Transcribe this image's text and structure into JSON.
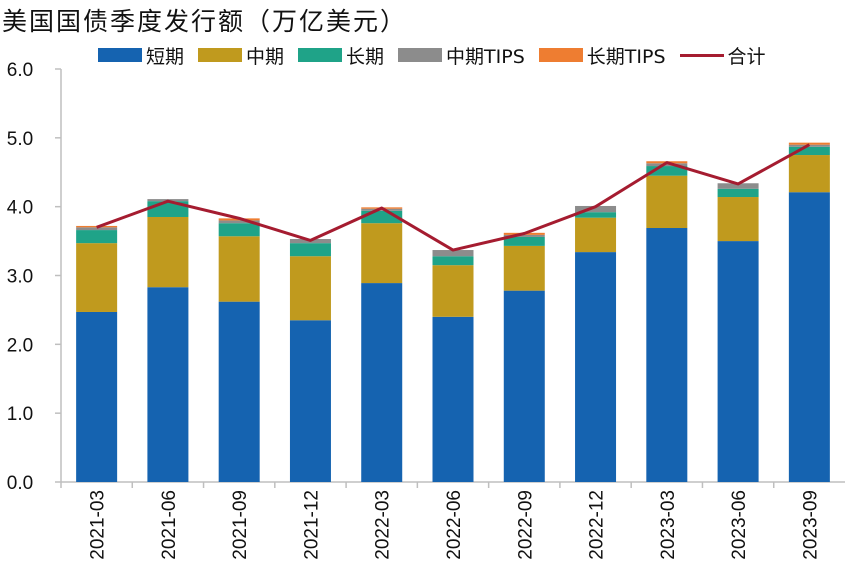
{
  "chart_data": {
    "type": "bar",
    "stacked": true,
    "title": "美国国债季度发行额（万亿美元）",
    "xlabel": "",
    "ylabel": "",
    "ylim": [
      0,
      6
    ],
    "yticks": [
      "0.0",
      "1.0",
      "2.0",
      "3.0",
      "4.0",
      "5.0",
      "6.0"
    ],
    "ytick_values": [
      0,
      1,
      2,
      3,
      4,
      5,
      6
    ],
    "grid": false,
    "legend_position": "top",
    "categories": [
      "2021-03",
      "2021-06",
      "2021-09",
      "2021-12",
      "2022-03",
      "2022-06",
      "2022-09",
      "2022-12",
      "2023-03",
      "2023-06",
      "2023-09"
    ],
    "series": [
      {
        "name": "短期",
        "color": "#1563B0",
        "values": [
          2.47,
          2.83,
          2.62,
          2.35,
          2.89,
          2.4,
          2.78,
          3.34,
          3.69,
          3.5,
          4.21
        ]
      },
      {
        "name": "中期",
        "color": "#C09A1E",
        "values": [
          1.0,
          1.02,
          0.95,
          0.93,
          0.87,
          0.75,
          0.65,
          0.5,
          0.76,
          0.64,
          0.54
        ]
      },
      {
        "name": "长期",
        "color": "#1FA388",
        "values": [
          0.19,
          0.23,
          0.19,
          0.19,
          0.18,
          0.13,
          0.13,
          0.08,
          0.14,
          0.12,
          0.12
        ]
      },
      {
        "name": "中期TIPS",
        "color": "#8C8C8C",
        "values": [
          0.04,
          0.03,
          0.04,
          0.06,
          0.03,
          0.09,
          0.03,
          0.09,
          0.04,
          0.08,
          0.03
        ]
      },
      {
        "name": "长期TIPS",
        "color": "#EE7D31",
        "values": [
          0.02,
          0.0,
          0.03,
          0.0,
          0.02,
          0.0,
          0.03,
          0.0,
          0.03,
          0.0,
          0.03
        ]
      }
    ],
    "line_series": {
      "name": "合计",
      "color": "#A51C30",
      "values": [
        3.7,
        4.08,
        3.83,
        3.51,
        3.98,
        3.37,
        3.61,
        4.0,
        4.64,
        4.33,
        4.9
      ]
    }
  }
}
